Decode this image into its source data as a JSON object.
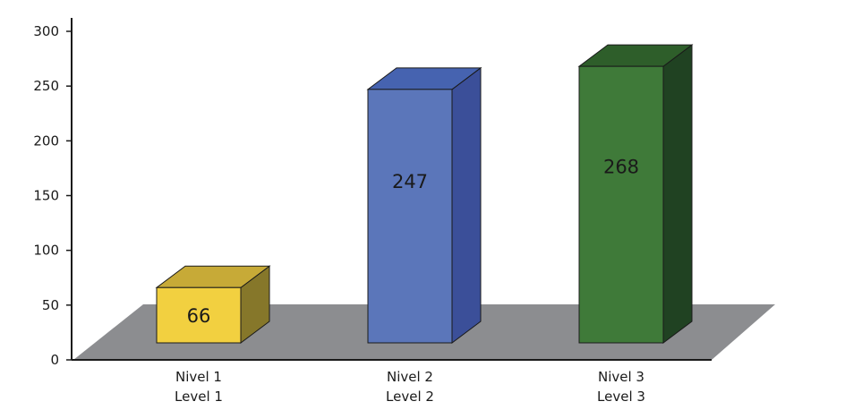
{
  "chart_data": {
    "type": "bar",
    "categories": [
      [
        "Nivel 1",
        "Level 1"
      ],
      [
        "Nivel 2",
        "Level 2"
      ],
      [
        "Nivel 3",
        "Level 3"
      ]
    ],
    "values": [
      66,
      247,
      268
    ],
    "ylim": [
      0,
      300
    ],
    "yticks": [
      0,
      50,
      100,
      150,
      200,
      250,
      300
    ],
    "grid": false,
    "legend": "none",
    "colors": {
      "bars": [
        {
          "front": "#f2d040",
          "top": "#c7aa37",
          "side": "#86772a"
        },
        {
          "front": "#5b76ba",
          "top": "#4663b0",
          "side": "#3b4f99"
        },
        {
          "front": "#3f7a39",
          "top": "#2e5e2a",
          "side": "#204222"
        }
      ],
      "floor": "#8c8d90",
      "axis": "#1a1a1a",
      "edge": "#1a1a1a"
    }
  }
}
